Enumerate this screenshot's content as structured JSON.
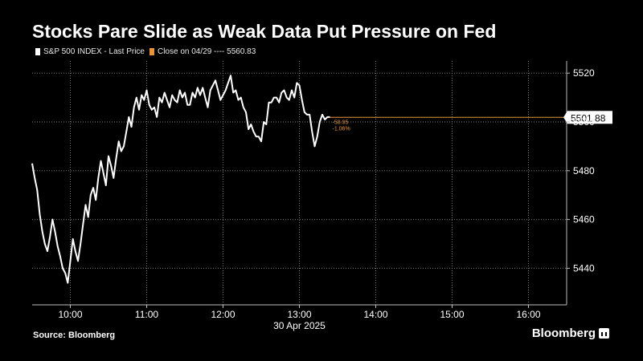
{
  "header": {
    "title": "Stocks Pare Slide as Weak Data Put Pressure on Fed"
  },
  "legend": {
    "price_label": "S&P 500 INDEX - Last Price",
    "close_label": "Close on 04/29 ---- 5560.83",
    "price_color": "#ffffff",
    "close_color": "#e8943a"
  },
  "footer": {
    "source": "Source: Bloomberg",
    "brand": "Bloomberg"
  },
  "chart_data": {
    "type": "line",
    "title": "Stocks Pare Slide as Weak Data Put Pressure on Fed",
    "date_label": "30 Apr 2025",
    "x_ticks": [
      "10:00",
      "11:00",
      "12:00",
      "13:00",
      "14:00",
      "15:00",
      "16:00"
    ],
    "y_ticks": [
      5440,
      5460,
      5480,
      5500,
      5520
    ],
    "ylim": [
      5425,
      5525
    ],
    "xlim": [
      "09:30",
      "16:30"
    ],
    "grid": true,
    "last_value_label": "5501.88",
    "change_label": "-58.95",
    "change_pct_label": "-1.06%",
    "series": [
      {
        "name": "S&P 500 INDEX - Last Price",
        "color": "#ffffff",
        "x": [
          "09:30",
          "09:32",
          "09:34",
          "09:36",
          "09:38",
          "09:40",
          "09:42",
          "09:44",
          "09:46",
          "09:48",
          "09:50",
          "09:52",
          "09:54",
          "09:56",
          "09:58",
          "10:00",
          "10:02",
          "10:04",
          "10:06",
          "10:08",
          "10:10",
          "10:12",
          "10:14",
          "10:16",
          "10:18",
          "10:20",
          "10:22",
          "10:24",
          "10:26",
          "10:28",
          "10:30",
          "10:32",
          "10:34",
          "10:36",
          "10:38",
          "10:40",
          "10:42",
          "10:44",
          "10:46",
          "10:48",
          "10:50",
          "10:52",
          "10:54",
          "10:56",
          "10:58",
          "11:00",
          "11:02",
          "11:04",
          "11:06",
          "11:08",
          "11:10",
          "11:12",
          "11:14",
          "11:16",
          "11:18",
          "11:20",
          "11:22",
          "11:24",
          "11:26",
          "11:28",
          "11:30",
          "11:32",
          "11:34",
          "11:36",
          "11:38",
          "11:40",
          "11:42",
          "11:44",
          "11:46",
          "11:48",
          "11:50",
          "11:52",
          "11:54",
          "11:56",
          "11:58",
          "12:00",
          "12:02",
          "12:04",
          "12:06",
          "12:08",
          "12:10",
          "12:12",
          "12:14",
          "12:16",
          "12:18",
          "12:20",
          "12:22",
          "12:24",
          "12:26",
          "12:28",
          "12:30",
          "12:32",
          "12:34",
          "12:36",
          "12:38",
          "12:40",
          "12:42",
          "12:44",
          "12:46",
          "12:48",
          "12:50",
          "12:52",
          "12:54",
          "12:56",
          "12:58",
          "13:00",
          "13:02",
          "13:04",
          "13:06",
          "13:08",
          "13:10",
          "13:12",
          "13:14",
          "13:16",
          "13:18",
          "13:20",
          "13:22",
          "13:24"
        ],
        "values": [
          5483,
          5477,
          5472,
          5462,
          5455,
          5450,
          5447,
          5453,
          5460,
          5455,
          5449,
          5445,
          5440,
          5438,
          5434,
          5443,
          5452,
          5447,
          5443,
          5450,
          5458,
          5466,
          5461,
          5470,
          5473,
          5468,
          5477,
          5484,
          5479,
          5474,
          5486,
          5482,
          5477,
          5485,
          5492,
          5488,
          5490,
          5496,
          5502,
          5498,
          5506,
          5510,
          5505,
          5511,
          5509,
          5513,
          5507,
          5505,
          5506,
          5502,
          5510,
          5508,
          5512,
          5509,
          5506,
          5511,
          5509,
          5508,
          5513,
          5510,
          5512,
          5507,
          5507,
          5512,
          5510,
          5514,
          5511,
          5514,
          5510,
          5506,
          5513,
          5515,
          5517,
          5513,
          5509,
          5511,
          5513,
          5516,
          5519,
          5512,
          5513,
          5509,
          5510,
          5506,
          5504,
          5497,
          5499,
          5496,
          5494,
          5494,
          5492,
          5500,
          5499,
          5508,
          5508,
          5510,
          5510,
          5508,
          5512,
          5513,
          5510,
          5509,
          5513,
          5510,
          5516,
          5515,
          5509,
          5504,
          5503,
          5503,
          5496,
          5490,
          5494,
          5500,
          5503,
          5501,
          5502,
          5502
        ]
      }
    ]
  }
}
